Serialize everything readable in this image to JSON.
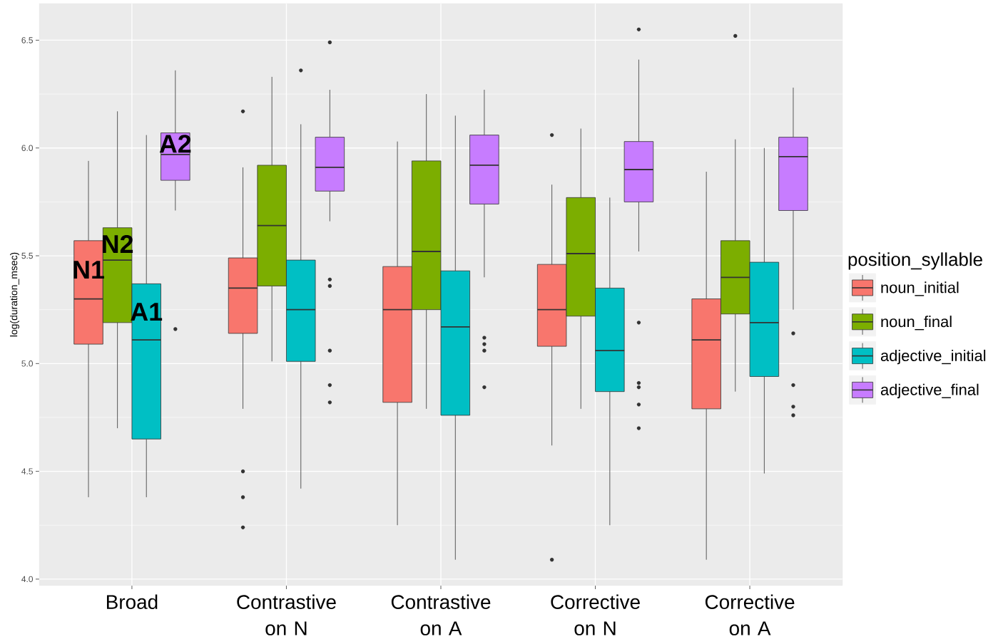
{
  "chart_data": {
    "type": "box",
    "categories": [
      "Broad",
      "Contrastive on N",
      "Contrastive on A",
      "Corrective on N",
      "Corrective on A"
    ],
    "ylabel": "log(duration_msec)",
    "legend_title": "position_syllable",
    "legend": "right",
    "grid": true,
    "ylim": [
      3.97,
      6.67
    ],
    "yticks": [
      {
        "value": 4,
        "label": "4.0"
      },
      4.5,
      {
        "value": 5,
        "label": "5.0"
      },
      5.5,
      {
        "value": 6,
        "label": "6.0"
      },
      6.5
    ],
    "series": [
      {
        "name": "noun_initial",
        "color": "#f8766d",
        "boxes": [
          {
            "low": 4.38,
            "q1": 5.09,
            "median": 5.3,
            "q3": 5.57,
            "high": 5.94
          },
          {
            "low": 4.79,
            "q1": 5.14,
            "median": 5.35,
            "q3": 5.49,
            "high": 5.91,
            "outliers": [
              6.17,
              4.5,
              4.38,
              4.24
            ]
          },
          {
            "low": 4.25,
            "q1": 4.82,
            "median": 5.25,
            "q3": 5.45,
            "high": 6.03
          },
          {
            "low": 4.62,
            "q1": 5.08,
            "median": 5.25,
            "q3": 5.46,
            "high": 5.83,
            "outliers": [
              6.06,
              4.09
            ]
          },
          {
            "low": 4.09,
            "q1": 4.79,
            "median": 5.11,
            "q3": 5.3,
            "high": 5.89
          }
        ]
      },
      {
        "name": "noun_final",
        "color": "#7cae00",
        "boxes": [
          {
            "low": 4.7,
            "q1": 5.19,
            "median": 5.48,
            "q3": 5.63,
            "high": 6.17
          },
          {
            "low": 5.01,
            "q1": 5.36,
            "median": 5.64,
            "q3": 5.92,
            "high": 6.33
          },
          {
            "low": 4.79,
            "q1": 5.25,
            "median": 5.52,
            "q3": 5.94,
            "high": 6.25
          },
          {
            "low": 4.79,
            "q1": 5.22,
            "median": 5.51,
            "q3": 5.77,
            "high": 6.09
          },
          {
            "low": 4.87,
            "q1": 5.23,
            "median": 5.4,
            "q3": 5.57,
            "high": 6.04,
            "outliers": [
              6.52
            ]
          }
        ]
      },
      {
        "name": "adjective_initial",
        "color": "#00bfc4",
        "boxes": [
          {
            "low": 4.38,
            "q1": 4.65,
            "median": 5.11,
            "q3": 5.37,
            "high": 6.06
          },
          {
            "low": 4.42,
            "q1": 5.01,
            "median": 5.25,
            "q3": 5.48,
            "high": 6.11,
            "outliers": [
              6.36
            ]
          },
          {
            "low": 4.09,
            "q1": 4.76,
            "median": 5.17,
            "q3": 5.43,
            "high": 6.15
          },
          {
            "low": 4.25,
            "q1": 4.87,
            "median": 5.06,
            "q3": 5.35,
            "high": 5.77
          },
          {
            "low": 4.49,
            "q1": 4.94,
            "median": 5.19,
            "q3": 5.47,
            "high": 6.0
          }
        ]
      },
      {
        "name": "adjective_final",
        "color": "#c77cff",
        "boxes": [
          {
            "low": 5.71,
            "q1": 5.85,
            "median": 5.97,
            "q3": 6.07,
            "high": 6.36,
            "outliers": [
              5.16
            ]
          },
          {
            "low": 5.66,
            "q1": 5.8,
            "median": 5.91,
            "q3": 6.05,
            "high": 6.27,
            "outliers": [
              6.49,
              5.39,
              5.36,
              5.06,
              4.9,
              4.82
            ]
          },
          {
            "low": 5.4,
            "q1": 5.74,
            "median": 5.92,
            "q3": 6.06,
            "high": 6.27,
            "outliers": [
              5.12,
              5.09,
              5.06,
              4.89
            ]
          },
          {
            "low": 5.52,
            "q1": 5.75,
            "median": 5.9,
            "q3": 6.03,
            "high": 6.41,
            "outliers": [
              6.55,
              5.19,
              4.91,
              4.89,
              4.81,
              4.7
            ]
          },
          {
            "low": 5.25,
            "q1": 5.71,
            "median": 5.96,
            "q3": 6.05,
            "high": 6.28,
            "outliers": [
              5.14,
              4.9,
              4.8,
              4.76
            ]
          }
        ]
      }
    ],
    "annotations": [
      "N1",
      "N2",
      "A1",
      "A2"
    ]
  }
}
